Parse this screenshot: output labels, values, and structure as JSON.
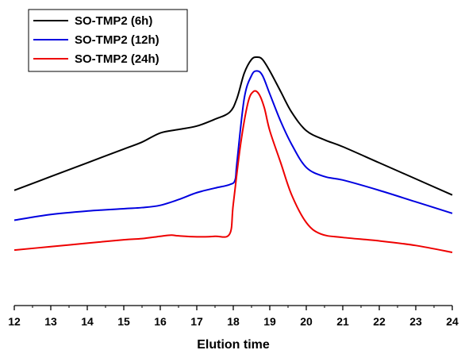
{
  "chart_data": {
    "type": "line",
    "title": "",
    "xlabel": "Elution time",
    "ylabel": "",
    "xlim": [
      12,
      24
    ],
    "ylim": [
      0,
      100
    ],
    "xticks": [
      12,
      13,
      14,
      15,
      16,
      17,
      18,
      19,
      20,
      21,
      22,
      23,
      24
    ],
    "grid": false,
    "legend_position": "top-left",
    "series": [
      {
        "name": "SO-TMP2 (6h)",
        "color": "#000000",
        "x": [
          12,
          13,
          14,
          15,
          15.5,
          16,
          16.5,
          17,
          17.5,
          17.9,
          18.1,
          18.3,
          18.5,
          18.65,
          18.8,
          19.0,
          19.3,
          19.6,
          20.0,
          20.5,
          21,
          22,
          23,
          24
        ],
        "y": [
          42,
          48,
          54,
          60,
          63,
          67,
          68.5,
          70,
          73,
          76,
          82,
          93,
          99,
          100,
          99,
          94,
          85,
          76,
          68,
          64,
          61,
          54,
          47,
          40
        ]
      },
      {
        "name": "SO-TMP2 (12h)",
        "color": "#0000e0",
        "x": [
          12,
          13,
          14,
          15,
          15.5,
          16,
          16.5,
          17,
          17.5,
          17.9,
          18.05,
          18.1,
          18.3,
          18.5,
          18.65,
          18.8,
          19.0,
          19.3,
          19.6,
          20.0,
          20.5,
          21,
          22,
          23,
          24
        ],
        "y": [
          29,
          31.5,
          33,
          34,
          34.5,
          35.5,
          38,
          41,
          43,
          44.5,
          46.5,
          54,
          82,
          92,
          94,
          92,
          84,
          72,
          62,
          52,
          48,
          46.5,
          42,
          37,
          32
        ]
      },
      {
        "name": "SO-TMP2 (24h)",
        "color": "#ee0000",
        "x": [
          12,
          13,
          14,
          15,
          15.5,
          16,
          16.3,
          16.5,
          17,
          17.5,
          17.9,
          18.0,
          18.2,
          18.4,
          18.55,
          18.7,
          18.85,
          19.0,
          19.3,
          19.6,
          20.0,
          20.4,
          21,
          22,
          23,
          24
        ],
        "y": [
          16,
          17.5,
          19,
          20.5,
          21,
          22,
          22.5,
          22.2,
          21.8,
          22,
          23,
          36,
          62,
          80,
          85,
          84,
          78,
          68,
          54,
          40,
          28,
          23,
          21.5,
          20,
          18,
          15
        ]
      }
    ]
  }
}
